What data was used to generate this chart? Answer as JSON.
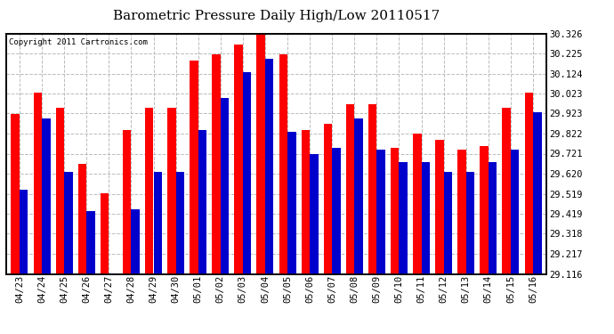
{
  "title": "Barometric Pressure Daily High/Low 20110517",
  "copyright": "Copyright 2011 Cartronics.com",
  "yticks": [
    29.116,
    29.217,
    29.318,
    29.419,
    29.519,
    29.62,
    29.721,
    29.822,
    29.923,
    30.023,
    30.124,
    30.225,
    30.326
  ],
  "ylim": [
    29.116,
    30.326
  ],
  "background_color": "#ffffff",
  "grid_color": "#bbbbbb",
  "bar_width": 0.38,
  "dates": [
    "04/23",
    "04/24",
    "04/25",
    "04/26",
    "04/27",
    "04/28",
    "04/29",
    "04/30",
    "05/01",
    "05/02",
    "05/03",
    "05/04",
    "05/05",
    "05/06",
    "05/07",
    "05/08",
    "05/09",
    "05/10",
    "05/11",
    "05/12",
    "05/13",
    "05/14",
    "05/15",
    "05/16"
  ],
  "highs": [
    29.92,
    30.03,
    29.95,
    29.67,
    29.52,
    29.84,
    29.95,
    29.95,
    30.19,
    30.22,
    30.27,
    30.33,
    30.22,
    29.84,
    29.87,
    29.97,
    29.97,
    29.75,
    29.82,
    29.79,
    29.74,
    29.76,
    29.95,
    30.03
  ],
  "lows": [
    29.54,
    29.9,
    29.63,
    29.43,
    29.12,
    29.44,
    29.63,
    29.63,
    29.84,
    30.0,
    30.13,
    30.2,
    29.83,
    29.72,
    29.75,
    29.9,
    29.74,
    29.68,
    29.68,
    29.63,
    29.63,
    29.68,
    29.74,
    29.93
  ],
  "high_color": "#ff0000",
  "low_color": "#0000cc",
  "title_fontsize": 11,
  "tick_fontsize": 7.5,
  "copyright_fontsize": 6.5
}
